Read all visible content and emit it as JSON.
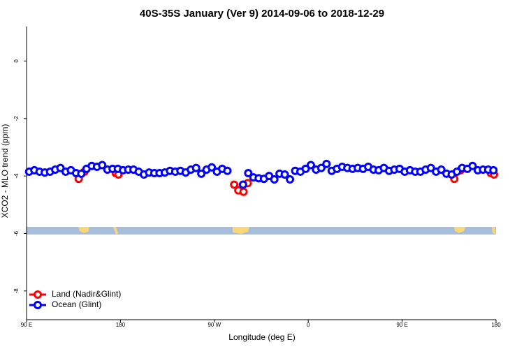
{
  "chart_data": {
    "type": "scatter",
    "title": "40S-35S January (Ver 9)   2014-09-06 to 2018-12-29",
    "x_label": "Longitude (deg E)",
    "y_label": "XCO2 - MLO trend (ppm)",
    "xlim": [
      90,
      540
    ],
    "ylim": [
      -9.0,
      1.2
    ],
    "xticks": [
      {
        "value": 90,
        "label": "90 E"
      },
      180,
      {
        "value": 270,
        "label": "90 W"
      },
      {
        "value": 360,
        "label": "0"
      },
      {
        "value": 450,
        "label": "90 E"
      },
      {
        "value": 540,
        "label": "180"
      }
    ],
    "yticks": [
      0,
      -2,
      -4,
      -6,
      -8
    ],
    "legend": "bottom-left",
    "series": [
      {
        "name": "Land (Nadir&Glint)",
        "color": "#ff0000",
        "x": [
          140,
          145.5,
          175.5,
          178,
          289,
          293,
          298,
          302,
          500,
          506,
          535,
          538
        ],
        "values": [
          -4.1,
          -3.85,
          -3.9,
          -3.95,
          -4.3,
          -4.5,
          -4.55,
          -4.25,
          -4.1,
          -3.8,
          -3.9,
          -3.95
        ]
      },
      {
        "name": "Ocean (Glint)",
        "color": "#0000ff",
        "x": [
          92.5,
          97.5,
          102.5,
          107.5,
          112.5,
          117.5,
          122.5,
          127.5,
          132.5,
          137.5,
          142.5,
          147.5,
          152.5,
          157.5,
          162.5,
          167.5,
          172.5,
          177.5,
          182.5,
          187.5,
          192.5,
          197.5,
          202.5,
          207.5,
          212.5,
          217.5,
          222.5,
          227.5,
          232.5,
          237.5,
          242.5,
          247.5,
          252.5,
          257.5,
          262.5,
          267.5,
          272.5,
          277.5,
          282.5,
          287.5,
          292.5,
          297.5,
          302.5,
          307.5,
          312.5,
          317.5,
          322.5,
          327.5,
          332.5,
          337.5,
          342.5,
          347.5,
          352.5,
          357.5,
          362.5,
          367.5,
          372.5,
          377.5,
          382.5,
          387.5,
          392.5,
          397.5,
          402.5,
          407.5,
          412.5,
          417.5,
          422.5,
          427.5,
          432.5,
          437.5,
          442.5,
          447.5,
          452.5,
          457.5,
          462.5,
          467.5,
          472.5,
          477.5,
          482.5,
          487.5,
          492.5,
          497.5,
          502.5,
          507.5,
          512.5,
          517.5,
          522.5,
          527.5,
          532.5,
          537.5
        ],
        "values": [
          -3.85,
          -3.8,
          -3.85,
          -3.88,
          -3.85,
          -3.78,
          -3.72,
          -3.85,
          -3.8,
          -3.9,
          -3.92,
          -3.75,
          -3.65,
          -3.68,
          -3.62,
          -3.78,
          -3.75,
          -3.75,
          -3.8,
          -3.78,
          -3.78,
          -3.85,
          -3.95,
          -3.88,
          -3.9,
          -3.9,
          -3.88,
          -3.82,
          -3.85,
          -3.82,
          -3.88,
          -3.78,
          -3.72,
          -3.92,
          -3.78,
          -3.7,
          -3.85,
          -3.75,
          -3.82,
          null,
          null,
          -4.3,
          -3.9,
          -4.05,
          -4.08,
          -4.1,
          -4.0,
          -4.12,
          -3.92,
          -3.95,
          -4.12,
          -3.82,
          -3.85,
          -3.75,
          -3.62,
          -3.78,
          -3.72,
          -3.58,
          -3.82,
          -3.75,
          -3.68,
          -3.72,
          -3.75,
          -3.72,
          -3.75,
          -3.68,
          -3.78,
          -3.8,
          -3.72,
          -3.82,
          -3.78,
          -3.75,
          -3.85,
          -3.8,
          -3.85,
          -3.85,
          -3.78,
          -3.72,
          -3.85,
          -3.78,
          -3.92,
          -3.95,
          -3.85,
          -3.72,
          -3.75,
          -3.65,
          -3.8,
          -3.78,
          -3.78,
          -3.8
        ]
      }
    ]
  }
}
